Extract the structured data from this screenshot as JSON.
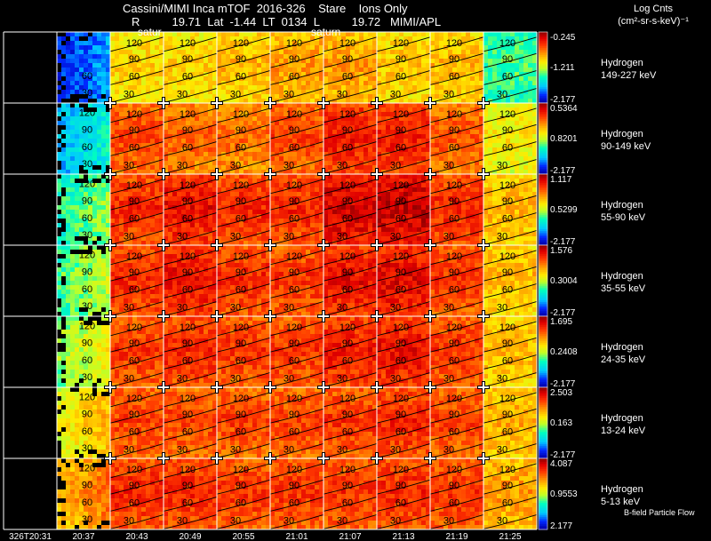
{
  "header": {
    "line1": "Cassini/MIMI Inca mTOF  2016-326    Stare    Ions Only",
    "line2": "R          19.71  Lat  -1.44  LT  0134  L          19.72   MIMI/APL",
    "units_title": "Log Cnts",
    "units_sub": "(cm²-sr-s-keV)⁻¹"
  },
  "overlay_labels": {
    "saturn_a": "satur",
    "saturn_b": "saturn"
  },
  "footer_label": "B-field  Particle  Flow",
  "chart_data": {
    "type": "heatmap",
    "title": "Cassini/MIMI Inca mTOF 2016-326 Stare Ions Only",
    "colorbar_label": "Log Cnts (cm²-sr-s-keV)⁻¹",
    "time_labels": [
      "326T20:31",
      "20:37",
      "20:43",
      "20:49",
      "20:55",
      "21:01",
      "21:07",
      "21:13",
      "21:19",
      "21:25"
    ],
    "contour_labels": [
      "120",
      "90",
      "60",
      "30"
    ],
    "rows": [
      {
        "species": "Hydrogen",
        "energy": "149-227 keV",
        "cmax": -0.245,
        "cmid": -1.211,
        "cmin": -2.177,
        "levels": [
          0.0,
          0.08,
          0.62,
          0.62,
          0.66,
          0.7,
          0.7,
          0.64,
          0.66,
          0.4
        ]
      },
      {
        "species": "Hydrogen",
        "energy": "90-149 keV",
        "cmax": 0.5364,
        "cmid": 0.8201,
        "cmin": -2.177,
        "levels": [
          0.0,
          0.22,
          0.82,
          0.78,
          0.76,
          0.82,
          0.88,
          0.88,
          0.8,
          0.58
        ]
      },
      {
        "species": "Hydrogen",
        "energy": "55-90 keV",
        "cmax": 1.117,
        "cmid": 0.5299,
        "cmin": -2.177,
        "levels": [
          0.0,
          0.36,
          0.86,
          0.9,
          0.86,
          0.86,
          0.94,
          0.96,
          0.86,
          0.66
        ]
      },
      {
        "species": "Hydrogen",
        "energy": "35-55 keV",
        "cmax": 1.576,
        "cmid": 0.3004,
        "cmin": -2.177,
        "levels": [
          0.0,
          0.4,
          0.86,
          0.9,
          0.86,
          0.84,
          0.9,
          0.92,
          0.84,
          0.66
        ]
      },
      {
        "species": "Hydrogen",
        "energy": "24-35 keV",
        "cmax": 1.695,
        "cmid": 0.2408,
        "cmin": -2.177,
        "levels": [
          0.0,
          0.46,
          0.84,
          0.86,
          0.84,
          0.84,
          0.88,
          0.9,
          0.84,
          0.66
        ]
      },
      {
        "species": "Hydrogen",
        "energy": "13-24 keV",
        "cmax": 2.503,
        "cmid": 0.163,
        "cmin": -2.177,
        "levels": [
          0.0,
          0.56,
          0.82,
          0.82,
          0.82,
          0.82,
          0.84,
          0.86,
          0.82,
          0.68
        ]
      },
      {
        "species": "Hydrogen",
        "energy": "5-13 keV",
        "cmax": 4.087,
        "cmid": 0.9553,
        "cmin": 2.177,
        "levels": [
          0.0,
          0.66,
          0.86,
          0.86,
          0.84,
          0.84,
          0.84,
          0.86,
          0.84,
          0.7
        ]
      }
    ]
  }
}
